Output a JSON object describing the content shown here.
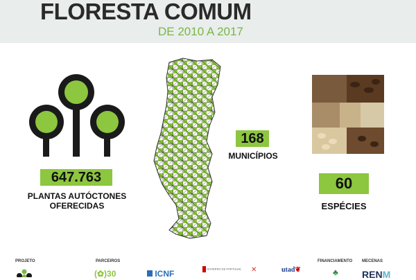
{
  "header": {
    "title": "FLORESTA COMUM",
    "subtitle": "DE 2010 A 2017"
  },
  "stats": [
    {
      "value": "647.763",
      "label_line1": "PLANTAS AUTÓCTONES",
      "label_line2": "OFERECIDAS",
      "icon": "trees-icon"
    },
    {
      "value": "168",
      "label_line1": "MUNICÍPIOS",
      "icon": "portugal-map"
    },
    {
      "value": "60",
      "label_line1": "ESPÉCIES",
      "icon": "seeds-image"
    }
  ],
  "footer": {
    "projeto": "PROJETO",
    "parceiros": "PARCEIROS",
    "financiamento": "FINANCIAMENTO",
    "mecenas": "MECENAS",
    "logos": {
      "icnf": "ICNF",
      "governo": "GOVERNO DE PORTUGAL",
      "utad": "utad",
      "ren": "REN"
    }
  },
  "colors": {
    "accent": "#8dc63f",
    "title": "#2a2a2a",
    "subtitle": "#7ab648",
    "header_bg": "#e9edec"
  }
}
